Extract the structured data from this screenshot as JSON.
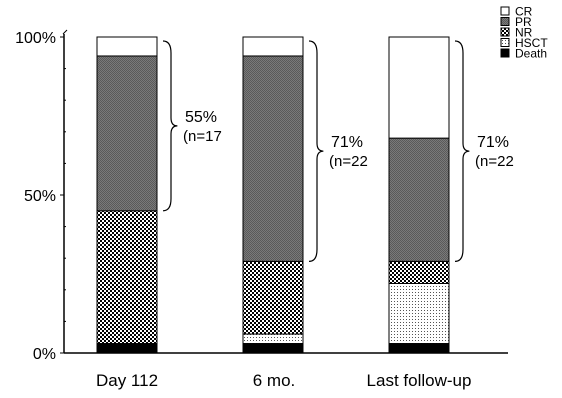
{
  "chart_data": {
    "type": "bar",
    "stacked": true,
    "categories": [
      "Day 112",
      "6 mo.",
      "Last follow-up"
    ],
    "series": [
      {
        "name": "Death",
        "values": [
          3,
          3,
          3
        ],
        "pattern": "solid-black"
      },
      {
        "name": "HSCT",
        "values": [
          0,
          3,
          19
        ],
        "pattern": "dots"
      },
      {
        "name": "NR",
        "values": [
          42,
          23,
          7
        ],
        "pattern": "checker"
      },
      {
        "name": "PR",
        "values": [
          49,
          65,
          39
        ],
        "pattern": "dark-gray"
      },
      {
        "name": "CR",
        "values": [
          6,
          6,
          32
        ],
        "pattern": "white"
      }
    ],
    "y_ticks": [
      "0%",
      "50%",
      "100%"
    ],
    "ylim": [
      0,
      100
    ],
    "brace_annotations": [
      {
        "category": "Day 112",
        "from": 45,
        "to": 100,
        "line1": "55%",
        "line2": "(n=17"
      },
      {
        "category": "6 mo.",
        "from": 29,
        "to": 100,
        "line1": "71%",
        "line2": "(n=22"
      },
      {
        "category": "Last follow-up",
        "from": 29,
        "to": 100,
        "line1": "71%",
        "line2": "(n=22"
      }
    ],
    "legend": {
      "placement": "top-right",
      "order": [
        "CR",
        "PR",
        "NR",
        "HSCT",
        "Death"
      ]
    },
    "colors": {
      "dark_gray": "#6e6e6e",
      "black": "#000000",
      "white": "#ffffff"
    }
  }
}
